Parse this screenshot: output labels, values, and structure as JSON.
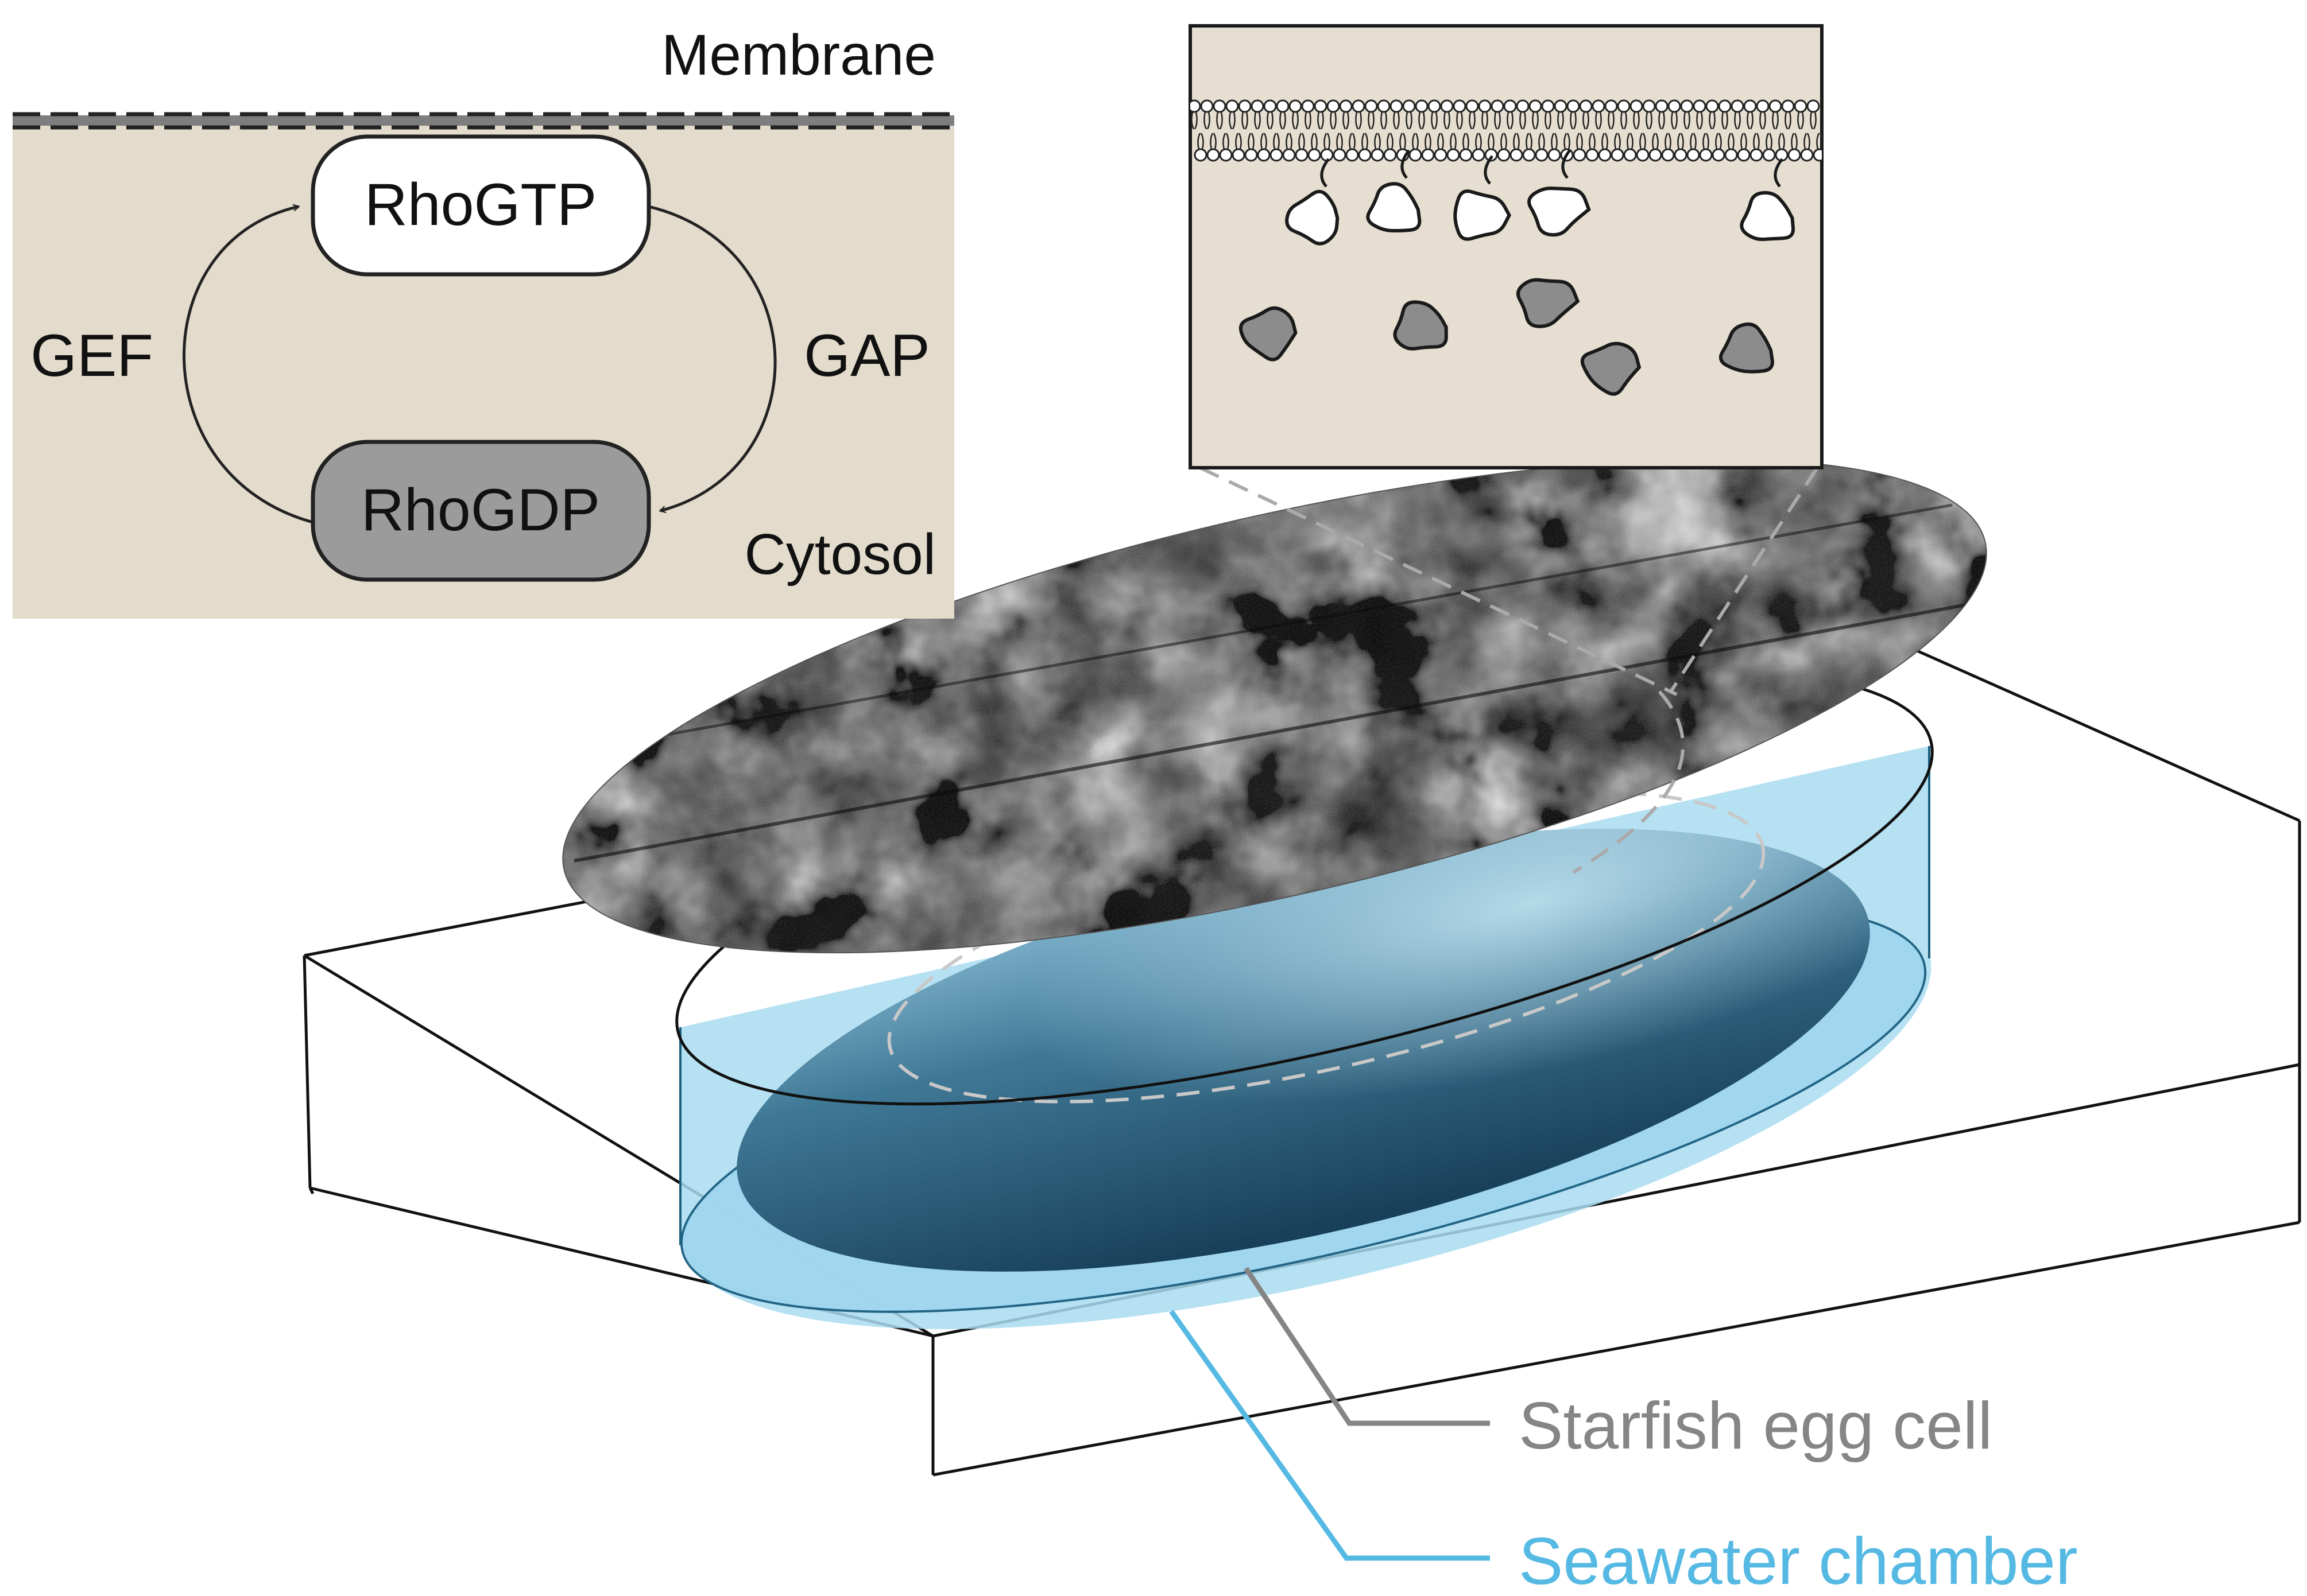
{
  "cycle_panel": {
    "membrane_label": "Membrane",
    "cytosol_label": "Cytosol",
    "active_state": "RhoGTP",
    "inactive_state": "RhoGDP",
    "activator": "GEF",
    "inactivator": "GAP"
  },
  "callouts": {
    "egg": "Starfish egg cell",
    "chamber": "Seawater chamber"
  },
  "colors": {
    "cytosol_bg": "#e3dbcc",
    "rho_gtp": "#ffffff",
    "rho_gdp": "#9b9b9b",
    "seawater": "#a9dcf0",
    "egg_dark": "#1f4d66",
    "egg_light": "#6fa4c0",
    "callout_gray": "#858585",
    "callout_blue": "#55b9e3"
  },
  "icons": {
    "lipid": "phospholipid-icon",
    "protein_bound": "membrane-bound-protein-icon",
    "protein_free": "cytosolic-protein-icon"
  }
}
